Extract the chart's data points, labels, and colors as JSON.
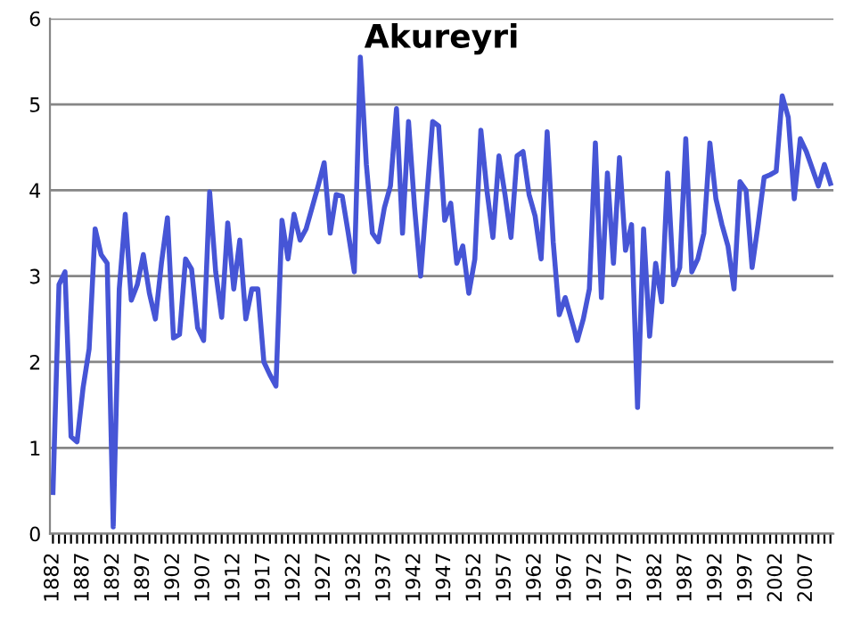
{
  "chart_data": {
    "type": "line",
    "title": "Akureyri",
    "categories": [
      "1882",
      null,
      null,
      null,
      null,
      "1887",
      null,
      null,
      null,
      null,
      "1892",
      null,
      null,
      null,
      null,
      "1897",
      null,
      null,
      null,
      null,
      "1902",
      null,
      null,
      null,
      null,
      "1907",
      null,
      null,
      null,
      null,
      "1912",
      null,
      null,
      null,
      null,
      "1917",
      null,
      null,
      null,
      null,
      "1922",
      null,
      null,
      null,
      null,
      "1927",
      null,
      null,
      null,
      null,
      "1932",
      null,
      null,
      null,
      null,
      "1937",
      null,
      null,
      null,
      null,
      "1942",
      null,
      null,
      null,
      null,
      "1947",
      null,
      null,
      null,
      null,
      "1952",
      null,
      null,
      null,
      null,
      "1957",
      null,
      null,
      null,
      null,
      "1962",
      null,
      null,
      null,
      null,
      "1967",
      null,
      null,
      null,
      null,
      "1972",
      null,
      null,
      null,
      null,
      "1977",
      null,
      null,
      null,
      null,
      "1982",
      null,
      null,
      null,
      null,
      "1987",
      null,
      null,
      null,
      null,
      "1992",
      null,
      null,
      null,
      null,
      "1997",
      null,
      null,
      null,
      null,
      "2002",
      null,
      null,
      null,
      null,
      "2007",
      null,
      null,
      null,
      null
    ],
    "series": [
      {
        "color": "#4655d6",
        "values": [
          0.48,
          2.9,
          3.05,
          1.13,
          1.07,
          1.7,
          2.15,
          3.55,
          3.25,
          3.15,
          0.08,
          2.85,
          3.72,
          2.72,
          2.9,
          3.25,
          2.8,
          2.5,
          3.15,
          3.68,
          2.28,
          2.32,
          3.2,
          3.08,
          2.4,
          2.25,
          3.98,
          3.05,
          2.52,
          3.62,
          2.85,
          3.42,
          2.5,
          2.85,
          2.85,
          2.0,
          1.85,
          1.72,
          3.65,
          3.2,
          3.72,
          3.42,
          3.55,
          3.8,
          4.05,
          4.32,
          3.5,
          3.95,
          3.93,
          3.5,
          3.05,
          5.55,
          4.3,
          3.5,
          3.4,
          3.8,
          4.05,
          4.95,
          3.5,
          4.8,
          3.8,
          3.0,
          3.9,
          4.8,
          4.75,
          3.65,
          3.85,
          3.15,
          3.35,
          2.8,
          3.2,
          4.7,
          4.0,
          3.45,
          4.4,
          3.95,
          3.45,
          4.4,
          4.45,
          3.95,
          3.7,
          3.2,
          4.68,
          3.4,
          2.55,
          2.75,
          2.5,
          2.25,
          2.5,
          2.85,
          4.55,
          2.75,
          4.2,
          3.15,
          4.38,
          3.3,
          3.6,
          1.47,
          3.55,
          2.3,
          3.15,
          2.7,
          4.2,
          2.9,
          3.1,
          4.6,
          3.05,
          3.2,
          3.5,
          4.55,
          3.9,
          3.6,
          3.35,
          2.85,
          4.1,
          4.0,
          3.1,
          3.6,
          4.15,
          4.18,
          4.22,
          5.1,
          4.85,
          3.9,
          4.6,
          4.45,
          4.25,
          4.05,
          4.3,
          4.08
        ]
      }
    ],
    "ylim": [
      0,
      6
    ],
    "yticks": [
      0,
      1,
      2,
      3,
      4,
      5,
      6
    ],
    "grid": "y",
    "marker": "none",
    "line_style": "solid"
  }
}
